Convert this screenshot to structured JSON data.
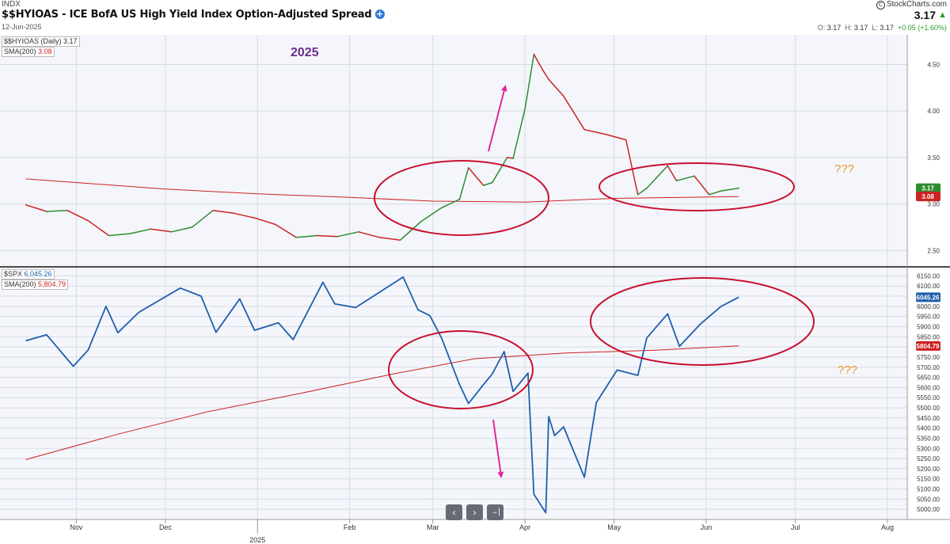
{
  "header": {
    "exchange": "INDX",
    "title": "$$HYIOAS - ICE BofA US High Yield Index Option-Adjusted Spread",
    "date": "12-Jun-2025",
    "brand": "StockCharts.com",
    "last_price": "3.17",
    "ohlc": {
      "o_label": "O:",
      "o": "3.17",
      "h_label": "H:",
      "h": "3.17",
      "l_label": "L:",
      "l": "3.17",
      "change": "+0.05 (+1.60%)"
    }
  },
  "legends": {
    "top_symbol": "$$HYIOAS (Daily) 3.17",
    "top_sma_label": "SMA(200)",
    "top_sma_value": "3.08",
    "bottom_symbol_label": "$SPX",
    "bottom_symbol_value": "6,045.26",
    "bottom_sma_label": "SMA(200)",
    "bottom_sma_value": "5,804.79"
  },
  "annotations": {
    "year_label": "2025",
    "question_top": "???",
    "question_bottom": "???"
  },
  "nav": {
    "prev": "‹",
    "next": "›",
    "end": "→|"
  },
  "colors": {
    "up": "#2e8b2e",
    "down": "#cc2222",
    "spx": "#1f5fae",
    "sma": "#cc2222",
    "circle": "#c8102e",
    "arrow": "#e0289a",
    "annot_year": "#6b2f8f",
    "annot_q": "#e69d2e",
    "plot_bg": "#f4f6fb"
  },
  "chart_data": [
    {
      "type": "line",
      "series": [
        {
          "name": "$$HYIOAS",
          "x": [
            "2024-10-15",
            "2024-10-22",
            "2024-10-29",
            "2024-11-05",
            "2024-11-12",
            "2024-11-19",
            "2024-11-26",
            "2024-12-03",
            "2024-12-10",
            "2024-12-17",
            "2024-12-24",
            "2024-12-31",
            "2025-01-07",
            "2025-01-14",
            "2025-01-21",
            "2025-01-28",
            "2025-02-04",
            "2025-02-11",
            "2025-02-18",
            "2025-02-25",
            "2025-03-04",
            "2025-03-10",
            "2025-03-13",
            "2025-03-18",
            "2025-03-21",
            "2025-03-26",
            "2025-03-28",
            "2025-04-01",
            "2025-04-04",
            "2025-04-07",
            "2025-04-09",
            "2025-04-14",
            "2025-04-21",
            "2025-04-28",
            "2025-05-05",
            "2025-05-09",
            "2025-05-12",
            "2025-05-19",
            "2025-05-22",
            "2025-05-28",
            "2025-06-02",
            "2025-06-06",
            "2025-06-12"
          ],
          "values": [
            2.99,
            2.92,
            2.93,
            2.82,
            2.66,
            2.68,
            2.73,
            2.7,
            2.75,
            2.93,
            2.9,
            2.85,
            2.78,
            2.64,
            2.66,
            2.65,
            2.7,
            2.64,
            2.61,
            2.81,
            2.96,
            3.05,
            3.39,
            3.2,
            3.23,
            3.5,
            3.49,
            4.02,
            4.61,
            4.44,
            4.34,
            4.16,
            3.8,
            3.75,
            3.69,
            3.1,
            3.17,
            3.41,
            3.25,
            3.3,
            3.1,
            3.14,
            3.17
          ]
        },
        {
          "name": "SMA(200)",
          "x": [
            "2024-10-15",
            "2024-12-01",
            "2025-01-01",
            "2025-02-01",
            "2025-03-01",
            "2025-04-01",
            "2025-05-01",
            "2025-06-12"
          ],
          "values": [
            3.27,
            3.16,
            3.11,
            3.07,
            3.03,
            3.02,
            3.06,
            3.08
          ]
        }
      ],
      "ylim": [
        2.4,
        4.7
      ],
      "y_ticks": [
        "4.50",
        "4.00",
        "3.50",
        "3.00",
        "2.50"
      ],
      "last_value": "3.17",
      "sma_last_value": "3.08",
      "grid": true
    },
    {
      "type": "line",
      "series": [
        {
          "name": "$SPX",
          "x": [
            "2024-10-15",
            "2024-10-22",
            "2024-10-31",
            "2024-11-05",
            "2024-11-11",
            "2024-11-15",
            "2024-11-22",
            "2024-12-06",
            "2024-12-13",
            "2024-12-18",
            "2024-12-26",
            "2024-12-31",
            "2025-01-08",
            "2025-01-13",
            "2025-01-23",
            "2025-01-27",
            "2025-02-03",
            "2025-02-19",
            "2025-02-24",
            "2025-02-28",
            "2025-03-04",
            "2025-03-10",
            "2025-03-13",
            "2025-03-18",
            "2025-03-21",
            "2025-03-25",
            "2025-03-28",
            "2025-04-02",
            "2025-04-04",
            "2025-04-08",
            "2025-04-09",
            "2025-04-11",
            "2025-04-14",
            "2025-04-21",
            "2025-04-25",
            "2025-05-02",
            "2025-05-09",
            "2025-05-12",
            "2025-05-19",
            "2025-05-23",
            "2025-05-30",
            "2025-06-06",
            "2025-06-12"
          ],
          "values": [
            5830,
            5860,
            5705,
            5785,
            6000,
            5870,
            5970,
            6090,
            6050,
            5872,
            6037,
            5882,
            5919,
            5836,
            6119,
            6012,
            5994,
            6144,
            5983,
            5954,
            5842,
            5614,
            5521,
            5614,
            5667,
            5777,
            5581,
            5671,
            5074,
            4983,
            5457,
            5363,
            5406,
            5158,
            5525,
            5686,
            5660,
            5844,
            5963,
            5803,
            5912,
            6000,
            6045
          ]
        },
        {
          "name": "SMA(200)",
          "x": [
            "2024-10-15",
            "2024-11-15",
            "2024-12-15",
            "2025-01-15",
            "2025-02-15",
            "2025-03-15",
            "2025-04-15",
            "2025-05-15",
            "2025-06-12"
          ],
          "values": [
            5245,
            5370,
            5480,
            5570,
            5665,
            5742,
            5770,
            5784,
            5805
          ]
        }
      ],
      "ylim": [
        4950,
        6175
      ],
      "y_ticks": [
        "6150.00",
        "6100.00",
        "6050.00",
        "6000.00",
        "5950.00",
        "5900.00",
        "5850.00",
        "5800.00",
        "5750.00",
        "5700.00",
        "5650.00",
        "5600.00",
        "5550.00",
        "5500.00",
        "5450.00",
        "5400.00",
        "5350.00",
        "5300.00",
        "5250.00",
        "5200.00",
        "5150.00",
        "5100.00",
        "5050.00",
        "5000.00"
      ],
      "last_value": "6045.26",
      "sma_last_value": "5804.79",
      "grid": true
    }
  ],
  "x_axis": {
    "labels": [
      {
        "text": "Nov",
        "date": "2024-11-01"
      },
      {
        "text": "Dec",
        "date": "2024-12-01"
      },
      {
        "text": "2025",
        "date": "2025-01-01"
      },
      {
        "text": "Feb",
        "date": "2025-02-01"
      },
      {
        "text": "Mar",
        "date": "2025-03-01"
      },
      {
        "text": "Apr",
        "date": "2025-04-01"
      },
      {
        "text": "May",
        "date": "2025-05-01"
      },
      {
        "text": "Jun",
        "date": "2025-06-01"
      },
      {
        "text": "Jul",
        "date": "2025-07-01"
      },
      {
        "text": "Aug",
        "date": "2025-08-01"
      }
    ]
  }
}
